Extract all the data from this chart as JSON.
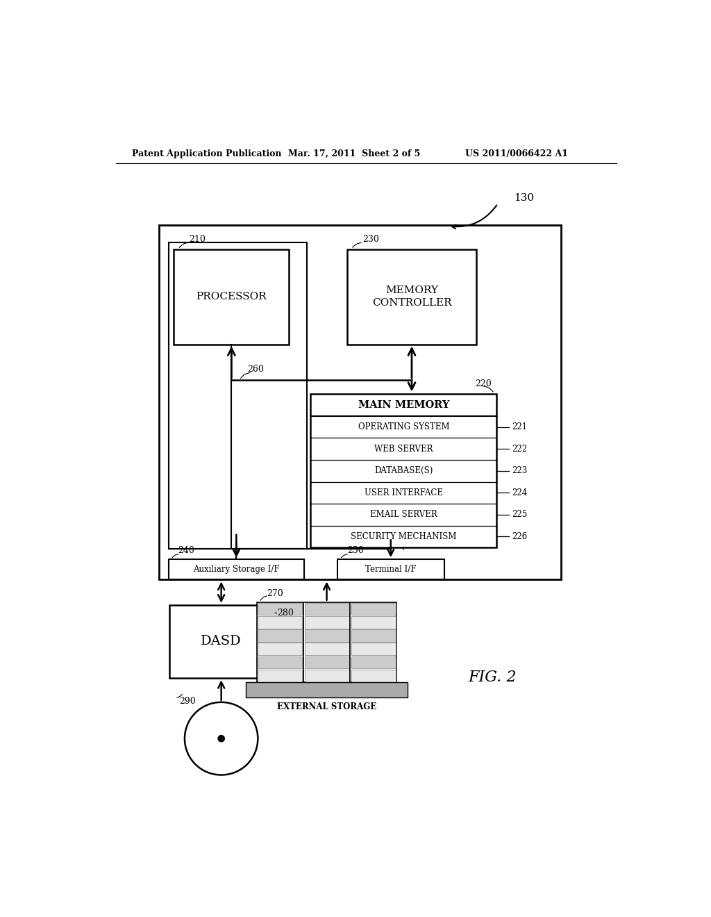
{
  "bg_color": "#ffffff",
  "header_left": "Patent Application Publication",
  "header_mid": "Mar. 17, 2011  Sheet 2 of 5",
  "header_right": "US 2011/0066422 A1",
  "fig_label": "FIG. 2",
  "outer_box_label": "130",
  "processor_label": "PROCESSOR",
  "processor_ref": "210",
  "mem_ctrl_line1": "MEMORY",
  "mem_ctrl_line2": "CONTROLLER",
  "mem_ctrl_ref": "230",
  "main_mem_label": "MAIN MEMORY",
  "main_mem_ref": "220",
  "bus_ref": "260",
  "aux_if_label": "Auxiliary Storage I/F",
  "aux_if_ref": "240",
  "term_if_label": "Terminal I/F",
  "term_if_ref": "250",
  "dasd_label": "DASD",
  "dasd_ref": "280",
  "ext_storage_label": "EXTERNAL STORAGE",
  "ext_storage_ref": "270",
  "disk_ref": "290",
  "memory_rows": [
    {
      "label": "OPERATING SYSTEM",
      "ref": "221"
    },
    {
      "label": "WEB SERVER",
      "ref": "222"
    },
    {
      "label": "DATABASE(S)",
      "ref": "223"
    },
    {
      "label": "USER INTERFACE",
      "ref": "224"
    },
    {
      "label": "EMAIL SERVER",
      "ref": "225"
    },
    {
      "label": "SECURITY MECHANISM",
      "ref": "226"
    }
  ]
}
